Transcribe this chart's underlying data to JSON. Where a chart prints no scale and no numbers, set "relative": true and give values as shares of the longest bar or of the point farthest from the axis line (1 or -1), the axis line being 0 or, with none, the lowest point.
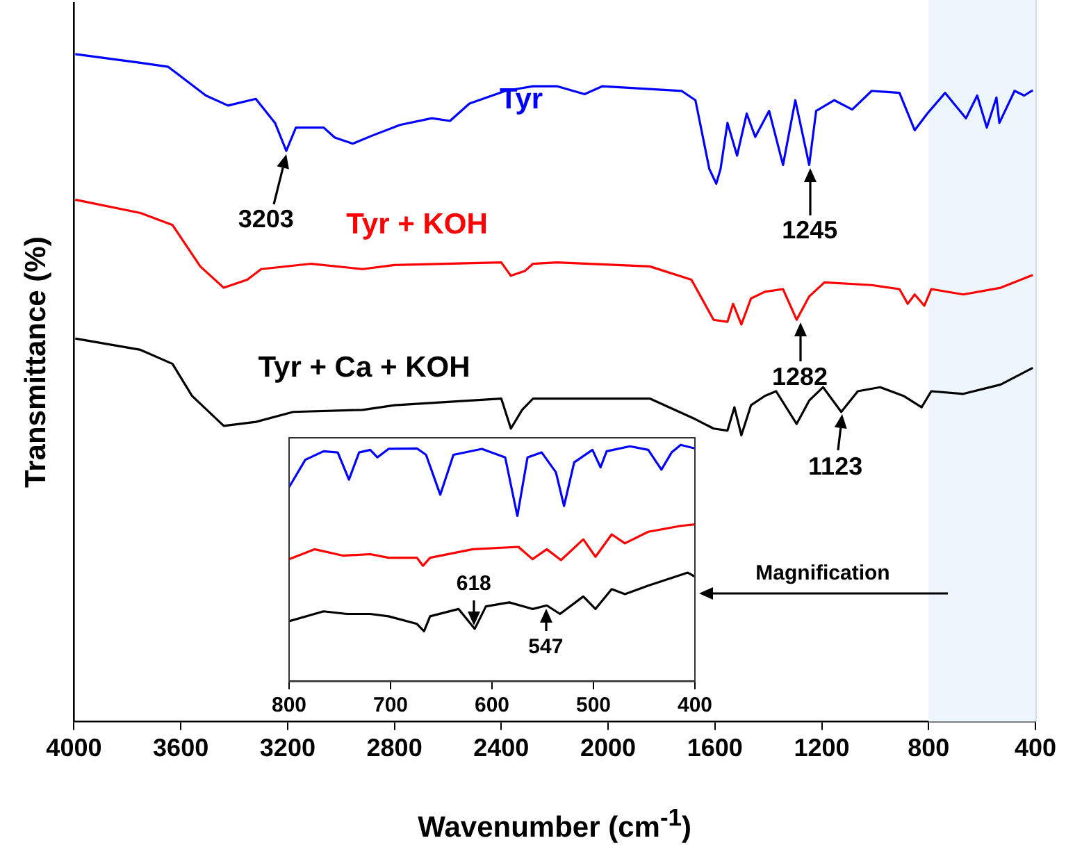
{
  "chart_data": [
    {
      "type": "line",
      "xlabel": "Wavenumber (cm$^{-1}$)",
      "ylabel": "Transmittance (%)",
      "relative": true,
      "tick_labels": "x",
      "xlim": [
        4000,
        400
      ],
      "xticks": [
        4000,
        3600,
        3200,
        2800,
        2400,
        2000,
        1600,
        1200,
        800,
        400
      ],
      "bands": [
        {
          "axis": "x",
          "from": 800,
          "to": 400,
          "color": "#edf6fd"
        }
      ],
      "annotations": [
        {
          "text": "3203",
          "x": 3203,
          "y": 0.855
        },
        {
          "text": "1245",
          "x": 1245,
          "y": 0.834
        },
        {
          "text": "1282",
          "x": 1282,
          "y": 0.602
        },
        {
          "text": "1123",
          "x": 1123,
          "y": 0.464
        },
        "Magnification"
      ],
      "series": [
        {
          "name": "Tyr",
          "color": "#0000ff",
          "x": [
            3995,
            3751,
            3647,
            3506,
            3423,
            3319,
            3247,
            3205,
            3169,
            3065,
            3023,
            2956,
            2883,
            2779,
            2660,
            2592,
            2519,
            2384,
            2281,
            2192,
            2088,
            2021,
            1725,
            1673,
            1621,
            1595,
            1579,
            1553,
            1517,
            1481,
            1449,
            1397,
            1345,
            1299,
            1247,
            1221,
            1153,
            1086,
            1013,
            909,
            852,
            805,
            738,
            660,
            618,
            582,
            546,
            535,
            478,
            442,
            410
          ],
          "values": [
            1.0,
            0.987,
            0.981,
            0.938,
            0.923,
            0.933,
            0.897,
            0.855,
            0.89,
            0.89,
            0.875,
            0.866,
            0.878,
            0.894,
            0.904,
            0.9,
            0.926,
            0.945,
            0.952,
            0.952,
            0.94,
            0.952,
            0.945,
            0.931,
            0.828,
            0.806,
            0.828,
            0.897,
            0.848,
            0.911,
            0.876,
            0.915,
            0.834,
            0.931,
            0.834,
            0.915,
            0.931,
            0.917,
            0.945,
            0.942,
            0.886,
            0.911,
            0.942,
            0.904,
            0.938,
            0.89,
            0.935,
            0.897,
            0.945,
            0.938,
            0.946
          ]
        },
        {
          "name": "Tyr + KOH",
          "color": "#ff0000",
          "x": [
            3995,
            3751,
            3631,
            3527,
            3439,
            3351,
            3299,
            3112,
            2919,
            2800,
            2400,
            2364,
            2312,
            2281,
            2192,
            1844,
            1688,
            1605,
            1553,
            1532,
            1501,
            1465,
            1413,
            1345,
            1294,
            1247,
            1190,
            1013,
            909,
            878,
            852,
            816,
            790,
            670,
            530,
            410
          ],
          "values": [
            0.782,
            0.762,
            0.744,
            0.682,
            0.65,
            0.662,
            0.678,
            0.686,
            0.678,
            0.684,
            0.688,
            0.668,
            0.675,
            0.686,
            0.688,
            0.682,
            0.662,
            0.602,
            0.599,
            0.626,
            0.595,
            0.634,
            0.644,
            0.648,
            0.602,
            0.637,
            0.658,
            0.654,
            0.648,
            0.626,
            0.64,
            0.623,
            0.648,
            0.64,
            0.65,
            0.669
          ]
        },
        {
          "name": "Tyr + Ca + KOH",
          "color": "#000000",
          "x": [
            3995,
            3751,
            3631,
            3558,
            3439,
            3319,
            3179,
            2919,
            2800,
            2400,
            2364,
            2322,
            2281,
            2192,
            1844,
            1673,
            1605,
            1553,
            1527,
            1501,
            1465,
            1413,
            1371,
            1294,
            1247,
            1195,
            1127,
            1065,
            982,
            894,
            826,
            790,
            670,
            530,
            410
          ],
          "values": [
            0.574,
            0.557,
            0.536,
            0.488,
            0.443,
            0.449,
            0.464,
            0.467,
            0.474,
            0.484,
            0.439,
            0.467,
            0.484,
            0.484,
            0.484,
            0.453,
            0.439,
            0.436,
            0.471,
            0.429,
            0.474,
            0.488,
            0.495,
            0.446,
            0.481,
            0.501,
            0.464,
            0.495,
            0.501,
            0.488,
            0.471,
            0.495,
            0.491,
            0.505,
            0.53
          ]
        }
      ]
    },
    {
      "type": "line",
      "relative": true,
      "tick_labels": "x",
      "xlim": [
        800,
        400
      ],
      "xticks": [
        800,
        700,
        600,
        500,
        400
      ],
      "annotations": [
        {
          "text": "618",
          "x": 618,
          "y": 0.221
        },
        {
          "text": "547",
          "x": 547,
          "y": 0.32
        }
      ],
      "series": [
        {
          "color": "#0000ff",
          "x": [
            800,
            784,
            766,
            752,
            741,
            731,
            720,
            713,
            702,
            674,
            665,
            651,
            638,
            610,
            587,
            575,
            565,
            551,
            537,
            529,
            519,
            501,
            493,
            487,
            464,
            446,
            433,
            423,
            414,
            400
          ],
          "values": [
            0.821,
            0.937,
            0.973,
            0.968,
            0.853,
            0.968,
            0.979,
            0.947,
            0.983,
            0.985,
            0.958,
            0.789,
            0.958,
            0.983,
            0.947,
            0.699,
            0.947,
            0.968,
            0.884,
            0.741,
            0.926,
            0.979,
            0.905,
            0.973,
            0.994,
            0.979,
            0.895,
            0.968,
            1.0,
            0.985
          ]
        },
        {
          "color": "#ff0000",
          "x": [
            800,
            775,
            747,
            720,
            702,
            674,
            668,
            661,
            619,
            574,
            560,
            546,
            532,
            510,
            498,
            482,
            469,
            446,
            414,
            400
          ],
          "values": [
            0.516,
            0.558,
            0.531,
            0.537,
            0.522,
            0.522,
            0.488,
            0.522,
            0.558,
            0.568,
            0.516,
            0.558,
            0.512,
            0.6,
            0.526,
            0.621,
            0.583,
            0.632,
            0.657,
            0.663
          ]
        },
        {
          "color": "#000000",
          "x": [
            800,
            766,
            743,
            720,
            702,
            674,
            667,
            661,
            633,
            617,
            606,
            583,
            560,
            546,
            533,
            510,
            498,
            482,
            469,
            446,
            419,
            407,
            400
          ],
          "values": [
            0.253,
            0.295,
            0.284,
            0.284,
            0.274,
            0.242,
            0.211,
            0.274,
            0.305,
            0.221,
            0.316,
            0.333,
            0.305,
            0.32,
            0.284,
            0.358,
            0.305,
            0.389,
            0.368,
            0.404,
            0.442,
            0.459,
            0.442
          ]
        }
      ]
    }
  ]
}
